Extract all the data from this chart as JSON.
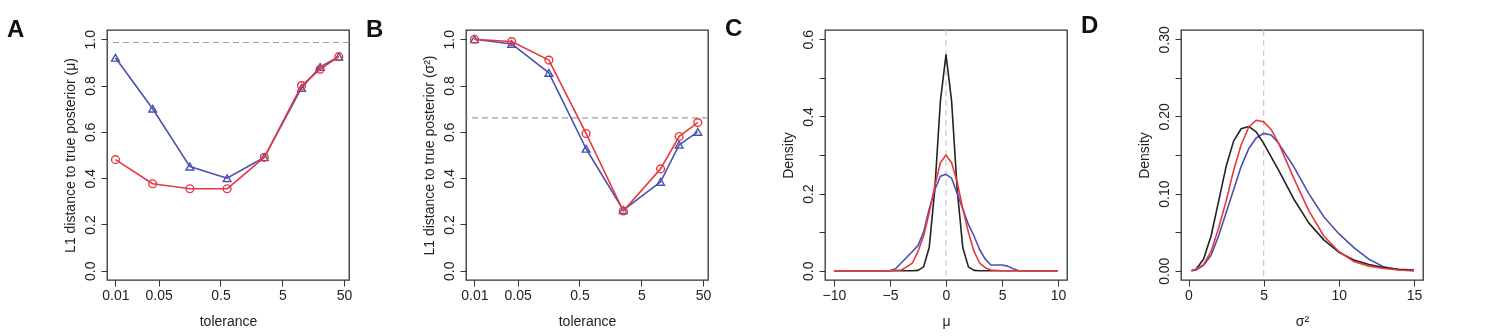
{
  "chart_data": [
    {
      "type": "line",
      "title": "A",
      "xlabel": "tolerance",
      "ylabel": "L1 distance to true posterior (μ)",
      "log": "x",
      "xlim": [
        0.0073,
        60
      ],
      "xticks": [
        0.01,
        0.05,
        0.5,
        5,
        50
      ],
      "ylim": [
        -0.04,
        1.04
      ],
      "yticks": [
        {
          "value": 0,
          "label": "0.0"
        },
        0.2,
        0.4,
        0.6,
        0.8,
        {
          "value": 1,
          "label": "1.0"
        }
      ],
      "grid": false,
      "line_style": "solid",
      "ref_lines": [
        {
          "axis": "y",
          "value": 0.986,
          "color": "#a0a0a0",
          "line_style": "dashed"
        }
      ],
      "series": [
        {
          "color": "#4a50b0",
          "marker": "triangle",
          "x": [
            0.01,
            0.04,
            0.16,
            0.64,
            2.56,
            10.24,
            20.48,
            40.96
          ],
          "values": [
            0.92,
            0.7,
            0.45,
            0.4,
            0.49,
            0.79,
            0.88,
            0.925
          ]
        },
        {
          "color": "#e8383f",
          "marker": "circle",
          "x": [
            0.01,
            0.04,
            0.16,
            0.64,
            2.56,
            10.24,
            20.48,
            40.96
          ],
          "values": [
            0.48,
            0.376,
            0.354,
            0.354,
            0.49,
            0.8,
            0.87,
            0.925
          ]
        }
      ]
    },
    {
      "type": "line",
      "title": "B",
      "xlabel": "tolerance",
      "ylabel": "L1 distance to true posterior (σ²)",
      "log": "x",
      "xlim": [
        0.0073,
        60
      ],
      "xticks": [
        0.01,
        0.05,
        0.5,
        5,
        50
      ],
      "ylim": [
        -0.04,
        1.04
      ],
      "yticks": [
        {
          "value": 0,
          "label": "0.0"
        },
        0.2,
        0.4,
        0.6,
        0.8,
        {
          "value": 1,
          "label": "1.0"
        }
      ],
      "grid": false,
      "line_style": "solid",
      "ref_lines": [
        {
          "axis": "y",
          "value": 0.66,
          "color": "#a0a0a0",
          "line_style": "dashed"
        }
      ],
      "series": [
        {
          "color": "#4a50b0",
          "marker": "triangle",
          "x": [
            0.01,
            0.04,
            0.16,
            0.64,
            2.56,
            10.24,
            20.48,
            40.96
          ],
          "values": [
            1.0,
            0.98,
            0.855,
            0.527,
            0.262,
            0.384,
            0.544,
            0.6
          ]
        },
        {
          "color": "#e8383f",
          "marker": "circle",
          "x": [
            0.01,
            0.04,
            0.16,
            0.64,
            2.56,
            10.24,
            20.48,
            40.96
          ],
          "values": [
            1.0,
            0.99,
            0.91,
            0.593,
            0.258,
            0.44,
            0.58,
            0.64
          ]
        }
      ]
    },
    {
      "type": "line",
      "title": "C",
      "xlabel": "μ",
      "ylabel": "Density",
      "xlim": [
        -10.8,
        10.8
      ],
      "xticks": [
        -10,
        -5,
        0,
        5,
        10
      ],
      "ylim": [
        -0.024,
        0.624
      ],
      "yticks": [
        {
          "value": 0,
          "label": "0.0"
        },
        {
          "value": 0.1,
          "label": null
        },
        0.2,
        {
          "value": 0.3,
          "label": null
        },
        0.4,
        {
          "value": 0.5,
          "label": null
        },
        0.6
      ],
      "grid": false,
      "line_style": "solid",
      "ref_lines": [
        {
          "axis": "x",
          "value": 0,
          "color": "#c8c8c8",
          "line_style": "dashed"
        }
      ],
      "series": [
        {
          "color": "#222222",
          "x": [
            -10,
            -3,
            -2.5,
            -2,
            -1.5,
            -1,
            -0.5,
            0,
            0.5,
            1,
            1.5,
            2,
            2.5,
            3,
            10
          ],
          "values": [
            0,
            0,
            0.001,
            0.01,
            0.06,
            0.21,
            0.44,
            0.56,
            0.44,
            0.21,
            0.06,
            0.01,
            0.001,
            0,
            0
          ]
        },
        {
          "color": "#4a50b0",
          "x": [
            -10,
            -5,
            -4.5,
            -4,
            -3.5,
            -3,
            -2.5,
            -2,
            -1.5,
            -1,
            -0.5,
            0,
            0.5,
            1,
            1.5,
            2,
            2.5,
            3,
            3.5,
            4,
            4.5,
            5,
            5.5,
            6,
            6.5,
            10
          ],
          "values": [
            0,
            0,
            0.005,
            0.02,
            0.035,
            0.05,
            0.065,
            0.1,
            0.16,
            0.21,
            0.245,
            0.25,
            0.24,
            0.2,
            0.16,
            0.12,
            0.09,
            0.055,
            0.03,
            0.015,
            0.015,
            0.015,
            0.012,
            0.005,
            0,
            0
          ]
        },
        {
          "color": "#e8383f",
          "x": [
            -10,
            -5,
            -4,
            -3.5,
            -3,
            -2.5,
            -2,
            -1.5,
            -1,
            -0.5,
            0,
            0.5,
            1,
            1.5,
            2,
            2.5,
            3,
            3.5,
            4,
            5,
            10
          ],
          "values": [
            0,
            0,
            0.002,
            0.01,
            0.02,
            0.05,
            0.09,
            0.15,
            0.22,
            0.28,
            0.3,
            0.28,
            0.23,
            0.16,
            0.1,
            0.05,
            0.02,
            0.008,
            0.002,
            0,
            0
          ]
        }
      ]
    },
    {
      "type": "line",
      "title": "D",
      "xlabel": "σ²",
      "ylabel": "Density",
      "xlim": [
        -0.5,
        15.6
      ],
      "xticks": [
        0,
        5,
        10,
        15
      ],
      "ylim": [
        -0.012,
        0.312
      ],
      "yticks": [
        {
          "value": 0,
          "label": "0.00"
        },
        {
          "value": 0.05,
          "label": null
        },
        {
          "value": 0.1,
          "label": "0.10"
        },
        {
          "value": 0.15,
          "label": null
        },
        {
          "value": 0.2,
          "label": "0.20"
        },
        {
          "value": 0.25,
          "label": null
        },
        {
          "value": 0.3,
          "label": "0.30"
        }
      ],
      "grid": false,
      "line_style": "solid",
      "ref_lines": [
        {
          "axis": "x",
          "value": 5,
          "color": "#c8c8c8",
          "line_style": "dashed"
        }
      ],
      "series": [
        {
          "color": "#4a50b0",
          "x": [
            0.2,
            0.5,
            1,
            1.5,
            2,
            2.5,
            3,
            3.5,
            4,
            4.5,
            5,
            5.5,
            6,
            7,
            8,
            9,
            10,
            11,
            12,
            13,
            14,
            15
          ],
          "values": [
            0,
            0.001,
            0.007,
            0.02,
            0.045,
            0.075,
            0.105,
            0.135,
            0.158,
            0.172,
            0.178,
            0.176,
            0.165,
            0.135,
            0.1,
            0.07,
            0.048,
            0.03,
            0.015,
            0.005,
            0.001,
            0
          ]
        },
        {
          "color": "#222222",
          "x": [
            0.2,
            0.5,
            1,
            1.5,
            2,
            2.5,
            3,
            3.5,
            4,
            4.5,
            5,
            6,
            7,
            8,
            9,
            10,
            11,
            12,
            13,
            14,
            15
          ],
          "values": [
            0,
            0.002,
            0.015,
            0.045,
            0.09,
            0.135,
            0.168,
            0.184,
            0.187,
            0.18,
            0.165,
            0.13,
            0.093,
            0.062,
            0.04,
            0.024,
            0.014,
            0.008,
            0.004,
            0.002,
            0.001
          ]
        },
        {
          "color": "#e8383f",
          "x": [
            0.2,
            0.5,
            1,
            1.5,
            2,
            2.5,
            3,
            3.5,
            4,
            4.5,
            5,
            5.5,
            6,
            7,
            8,
            9,
            10,
            11,
            12,
            13,
            14,
            15
          ],
          "values": [
            0,
            0.002,
            0.008,
            0.025,
            0.055,
            0.09,
            0.13,
            0.163,
            0.186,
            0.195,
            0.193,
            0.183,
            0.165,
            0.12,
            0.078,
            0.045,
            0.025,
            0.012,
            0.006,
            0.003,
            0.001,
            0
          ]
        }
      ]
    }
  ]
}
